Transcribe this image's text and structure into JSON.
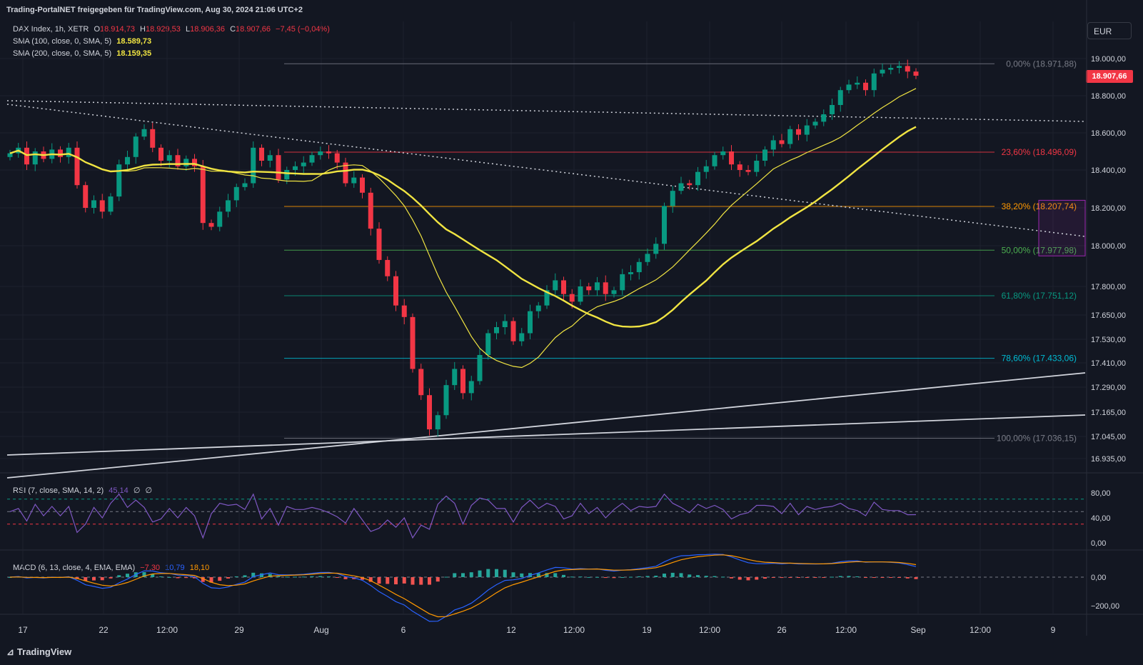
{
  "header": {
    "top_title": "Trading-PortalNET freigegeben für TradingView.com, Aug 30, 2024 21:06 UTC+2",
    "currency_button": "EUR",
    "last_price": "18.907,66",
    "brand": "TradingView"
  },
  "legends": {
    "main": {
      "symbol": "DAX Index, 1h, XETR",
      "o_label": "O",
      "o": "18.914,73",
      "h_label": "H",
      "h": "18.929,53",
      "l_label": "L",
      "l": "18.906,36",
      "c_label": "C",
      "c": "18.907,66",
      "chg": "−7,45 (−0,04%)"
    },
    "sma100": {
      "label": "SMA (100, close, 0, SMA, 5)",
      "value": "18.589,73"
    },
    "sma200": {
      "label": "SMA (200, close, 0, SMA, 5)",
      "value": "18.159,35"
    },
    "rsi": {
      "label": "RSI (7, close, SMA, 14, 2)",
      "value": "45,14",
      "extra1": "∅",
      "extra2": "∅"
    },
    "macd": {
      "label": "MACD (6, 13, close, 4, EMA, EMA)",
      "hist": "−7,30",
      "macd": "10,79",
      "signal": "18,10"
    }
  },
  "chart_data": [
    {
      "type": "candlestick",
      "title": "DAX Index, 1h, XETR",
      "y_axis_ticks": [
        "19.000,00",
        "18.800,00",
        "18.600,00",
        "18.400,00",
        "18.200,00",
        "18.000,00",
        "17.800,00",
        "17.650,00",
        "17.530,00",
        "17.410,00",
        "17.290,00",
        "17.165,00",
        "17.045,00",
        "16.935,00"
      ],
      "x_axis_ticks": [
        "17",
        "22",
        "12:00",
        "29",
        "Aug",
        "6",
        "12",
        "12:00",
        "19",
        "12:00",
        "26",
        "12:00",
        "Sep",
        "12:00",
        "9"
      ],
      "fibonacci": [
        {
          "label": "0,00% (18.971,88)",
          "price": 18971.88,
          "color": "#787b86"
        },
        {
          "label": "23,60% (18.496,09)",
          "price": 18496.09,
          "color": "#f23645"
        },
        {
          "label": "38,20% (18.207,74)",
          "price": 18207.74,
          "color": "#ff9800"
        },
        {
          "label": "50,00% (17.977,98)",
          "price": 17977.98,
          "color": "#4caf50"
        },
        {
          "label": "61,80% (17.751,12)",
          "price": 17751.12,
          "color": "#089981"
        },
        {
          "label": "78,60% (17.433,06)",
          "price": 17433.06,
          "color": "#00bcd4"
        },
        {
          "label": "100,00% (17.036,15)",
          "price": 17036.15,
          "color": "#787b86"
        }
      ],
      "series": [
        {
          "name": "SMA (100, close, 0, SMA, 5)",
          "color": "#f0e442",
          "last": 18589.73
        },
        {
          "name": "SMA (200, close, 0, SMA, 5)",
          "color": "#f0e442",
          "last": 18159.35
        }
      ],
      "close_path": [
        18490,
        18520,
        18430,
        18500,
        18460,
        18510,
        18470,
        18520,
        18320,
        18200,
        18240,
        18180,
        18260,
        18430,
        18470,
        18580,
        18620,
        18520,
        18450,
        18480,
        18420,
        18460,
        18420,
        18120,
        18100,
        18180,
        18240,
        18310,
        18330,
        18520,
        18450,
        18480,
        18350,
        18400,
        18420,
        18440,
        18480,
        18500,
        18490,
        18440,
        18330,
        18360,
        18280,
        18090,
        17930,
        17850,
        17700,
        17640,
        17380,
        17250,
        17080,
        17150,
        17300,
        17380,
        17260,
        17320,
        17450,
        17560,
        17590,
        17620,
        17520,
        17560,
        17670,
        17700,
        17780,
        17830,
        17760,
        17720,
        17800,
        17780,
        17820,
        17760,
        17780,
        17860,
        17870,
        17920,
        17960,
        18010,
        18210,
        18290,
        18330,
        18320,
        18390,
        18420,
        18480,
        18500,
        18430,
        18400,
        18390,
        18450,
        18510,
        18560,
        18540,
        18620,
        18590,
        18640,
        18660,
        18700,
        18750,
        18830,
        18860,
        18870,
        18830,
        18920,
        18940,
        18950,
        18960,
        18930,
        18907.66
      ]
    },
    {
      "type": "line",
      "title": "RSI (7, close, SMA, 14, 2)",
      "y_axis_ticks": [
        "80,00",
        "40,00",
        "0,00"
      ],
      "bands": [
        70,
        50,
        30
      ],
      "last": 45.14
    },
    {
      "type": "bar",
      "title": "MACD (6, 13, close, 4, EMA, EMA)",
      "y_axis_ticks": [
        "0,00",
        "−200,00"
      ],
      "series": [
        {
          "name": "MACD",
          "color": "#2962ff",
          "last": 10.79
        },
        {
          "name": "Signal",
          "color": "#ff9800",
          "last": 18.1
        },
        {
          "name": "Histogram",
          "color": "#26a69a",
          "last": -7.3
        }
      ]
    }
  ],
  "colors": {
    "bg": "#131722",
    "up": "#089981",
    "down": "#f23645",
    "grid": "#1e222d",
    "text": "#d1d4dc"
  }
}
